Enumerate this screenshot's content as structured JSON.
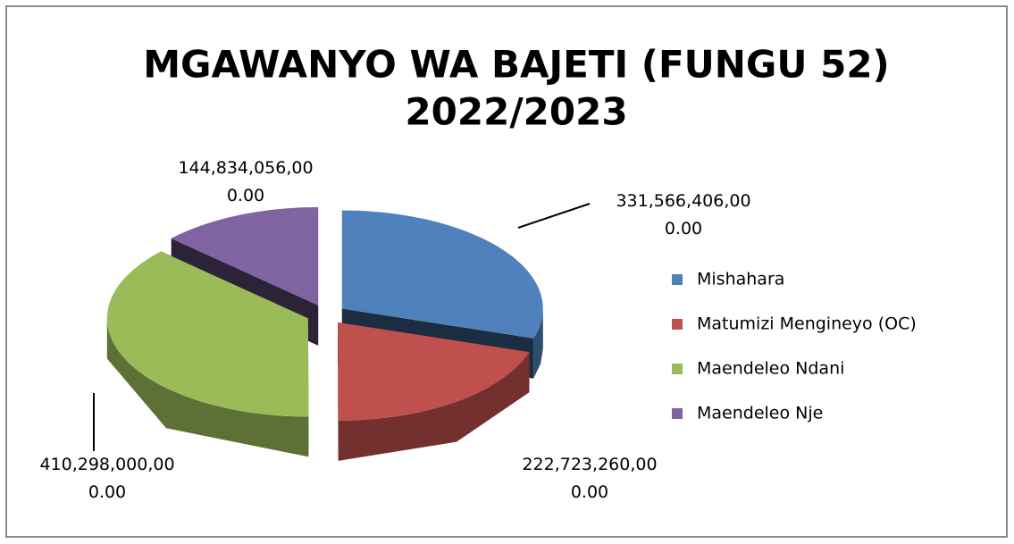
{
  "chart_data": {
    "type": "pie3d",
    "title": [
      "MGAWANYO WA BAJETI (FUNGU 52)",
      "2022/2023"
    ],
    "categories": [
      "Mishahara",
      "Matumizi Mengineyo (OC)",
      "Maendeleo Ndani",
      "Maendeleo Nje"
    ],
    "values": [
      331566406000,
      222723260000,
      410298000000,
      144834056000
    ],
    "value_labels": [
      "331,566,406,000.00",
      "222,723,260,000.00",
      "410,298,000,000.00",
      "144,834,056,000.00"
    ],
    "colors": [
      "#4f81bd",
      "#c0504d",
      "#9bbb59",
      "#8064a2"
    ],
    "legend": "right"
  }
}
